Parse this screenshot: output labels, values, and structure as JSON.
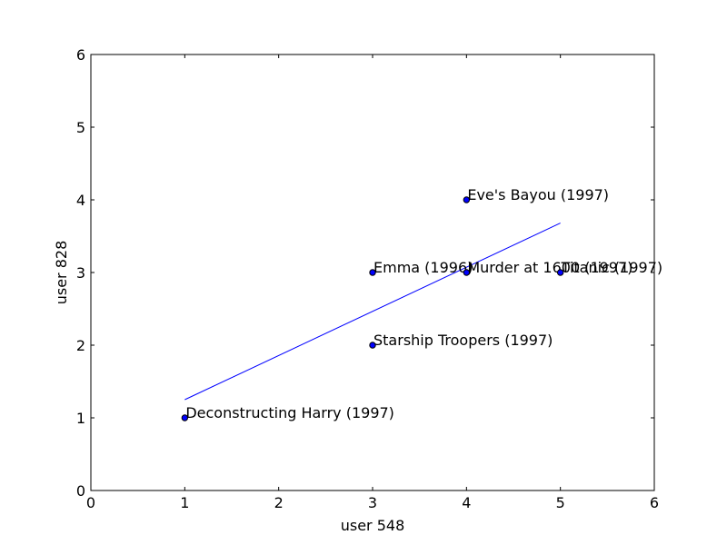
{
  "chart_data": {
    "type": "scatter",
    "title": "",
    "xlabel": "user 548",
    "ylabel": "user 828",
    "xlim": [
      0,
      6
    ],
    "ylim": [
      0,
      6
    ],
    "xticks": [
      0,
      1,
      2,
      3,
      4,
      5,
      6
    ],
    "yticks": [
      0,
      1,
      2,
      3,
      4,
      5,
      6
    ],
    "grid": false,
    "colors": {
      "points": "#0000ff",
      "point_edge": "#000000",
      "fit_line": "#0000ff"
    },
    "points": [
      {
        "label": "Eve's Bayou (1997)",
        "x": 4,
        "y": 4
      },
      {
        "label": "Emma (1996)",
        "x": 3,
        "y": 3
      },
      {
        "label": "Murder at 1600 (1997)",
        "x": 4,
        "y": 3
      },
      {
        "label": "Titanic (1997)",
        "x": 5,
        "y": 3
      },
      {
        "label": "Starship Troopers (1997)",
        "x": 3,
        "y": 2
      },
      {
        "label": "Deconstructing Harry (1997)",
        "x": 1,
        "y": 1
      }
    ],
    "fit_line": {
      "x": [
        1,
        5
      ],
      "y": [
        1.25,
        3.68
      ]
    }
  }
}
